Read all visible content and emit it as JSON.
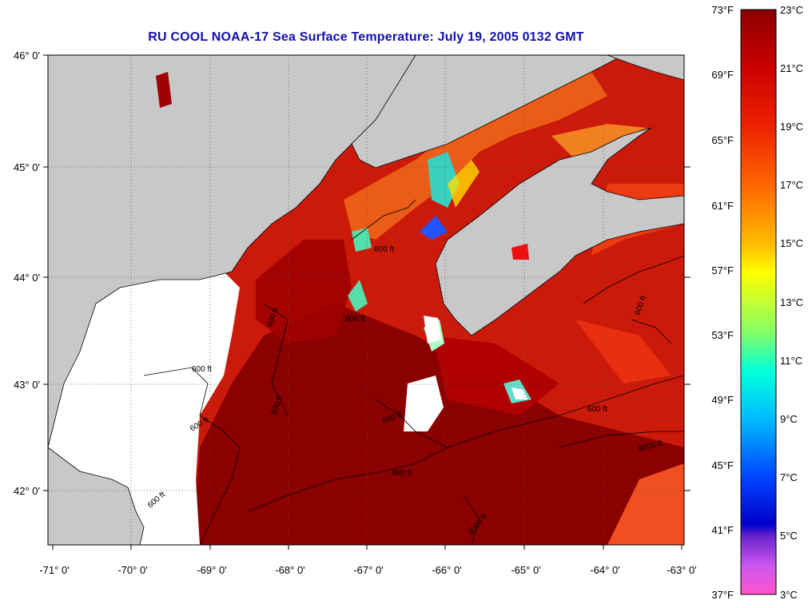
{
  "title": "RU COOL  NOAA-17  Sea Surface Temperature:  July 19, 2005 0132 GMT",
  "colors": {
    "land": "#c8c8c8",
    "nodata": "#ffffff",
    "warm_water": "#8b0000",
    "water_red": "#e01010",
    "water_orange": "#f07010",
    "title": "#1010b0"
  },
  "axes": {
    "lon_labels": [
      "-71° 0'",
      "-70° 0'",
      "-69° 0'",
      "-68° 0'",
      "-67° 0'",
      "-66° 0'",
      "-65° 0'",
      "-64° 0'",
      "-63° 0'"
    ],
    "lat_labels": [
      "46° 0'",
      "45° 0'",
      "44° 0'",
      "43° 0'",
      "42° 0'"
    ]
  },
  "contour_labels": [
    "600 ft",
    "600 ft",
    "600 ft",
    "600 ft",
    "600 ft",
    "600 ft",
    "600 ft",
    "600 ft",
    "600 ft",
    "600 ft",
    "6000 ft",
    "6000 ft",
    "600 ft"
  ],
  "colorbar": {
    "fahrenheit": [
      "73°F",
      "69°F",
      "65°F",
      "61°F",
      "57°F",
      "53°F",
      "49°F",
      "45°F",
      "41°F",
      "37°F"
    ],
    "celsius": [
      "23°C",
      "21°C",
      "19°C",
      "17°C",
      "15°C",
      "13°C",
      "11°C",
      "9°C",
      "7°C",
      "5°C",
      "3°C"
    ],
    "stops": [
      "#8b0000",
      "#cc0000",
      "#ee2200",
      "#ff6600",
      "#ffaa00",
      "#ffff00",
      "#88ff55",
      "#00ffcc",
      "#00bbff",
      "#0066ff",
      "#0000cc",
      "#6622cc",
      "#cc55ee",
      "#ff55cc"
    ]
  }
}
